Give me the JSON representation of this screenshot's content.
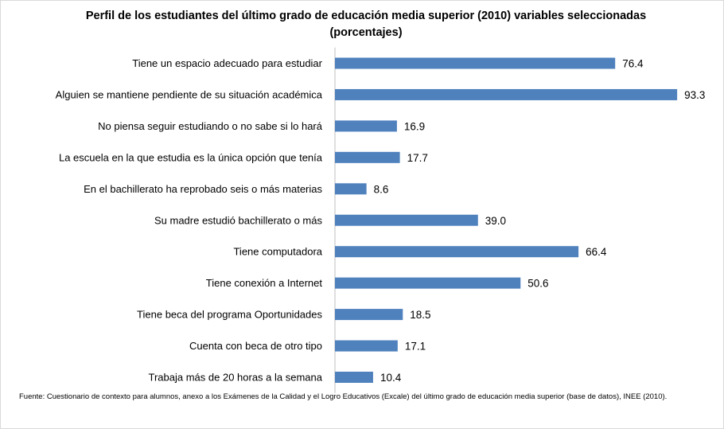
{
  "chart_data": {
    "type": "bar",
    "orientation": "horizontal",
    "title": "Perfil de los estudiantes del último grado de educación media superior (2010) variables seleccionadas (porcentajes)",
    "categories": [
      "Tiene un espacio adecuado para estudiar",
      "Alguien se mantiene pendiente de su situación académica",
      "No piensa seguir estudiando o no sabe si lo hará",
      "La escuela en la que estudia es la única opción que tenía",
      "En el bachillerato ha reprobado seis o más materias",
      "Su madre estudió bachillerato o más",
      "Tiene computadora",
      "Tiene conexión a Internet",
      "Tiene beca del programa Oportunidades",
      "Cuenta con beca de otro tipo",
      "Trabaja más de 20 horas a la semana"
    ],
    "values": [
      76.4,
      93.3,
      16.9,
      17.7,
      8.6,
      39.0,
      66.4,
      50.6,
      18.5,
      17.1,
      10.4
    ],
    "value_labels": [
      "76.4",
      "93.3",
      "16.9",
      "17.7",
      "8.6",
      "39.0",
      "66.4",
      "50.6",
      "18.5",
      "17.1",
      "10.4"
    ],
    "xlim": [
      0,
      100
    ],
    "grid": false,
    "legend": "none",
    "bar_color": "#4f81bd"
  },
  "source_note": "Fuente: Cuestionario de contexto para alumnos, anexo a los Exámenes de la Calidad y el Logro Educativos (Excale) del último grado de educación media superior (base de datos), INEE (2010)."
}
